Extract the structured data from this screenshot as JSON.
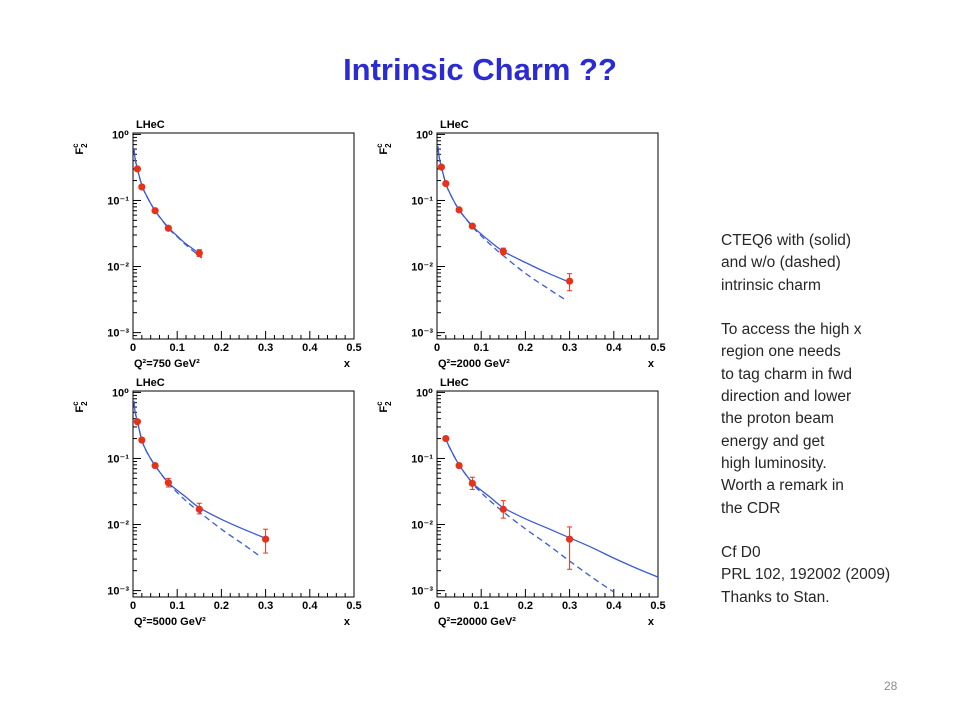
{
  "slide": {
    "title": "Intrinsic Charm ??",
    "page_number": "28",
    "notes": [
      {
        "lines": [
          "CTEQ6 with (solid)",
          "and w/o (dashed)",
          "intrinsic charm"
        ]
      },
      {
        "lines": [
          "To access the high x",
          "region one needs",
          "to tag charm in fwd",
          "direction and lower",
          "the proton beam",
          "energy and get",
          "high luminosity.",
          "Worth a remark in",
          "the CDR"
        ]
      },
      {
        "lines": [
          "Cf D0",
          "PRL 102, 192002 (2009)",
          "Thanks to Stan."
        ]
      }
    ],
    "colors": {
      "title": "#2b2bd4",
      "text": "#262626",
      "page_number": "#8c8c8c",
      "curve": "#3c5ad6",
      "data_points": "#e5321b",
      "frame": "#000000"
    }
  },
  "chart_data": [
    {
      "type": "scatter",
      "title": "LHeC",
      "annotation": "Q²=750 GeV²",
      "grid": false,
      "x_axis": {
        "label": "x",
        "scale": "linear",
        "range": [
          0,
          0.5
        ],
        "ticks": [
          0,
          0.1,
          0.2,
          0.3,
          0.4,
          0.5
        ],
        "tick_labels": [
          "0",
          "0.1",
          "0.2",
          "0.3",
          "0.4",
          "0.5"
        ]
      },
      "y_axis": {
        "label": {
          "base": "F",
          "sup": "c",
          "sub": "2"
        },
        "scale": "log",
        "range": [
          0.0008,
          1.05
        ],
        "ticks": [
          1,
          0.1,
          0.01,
          0.001
        ],
        "tick_labels": [
          "10⁰",
          "10⁻¹",
          "10⁻²",
          "10⁻³"
        ]
      },
      "series": [
        {
          "kind": "line",
          "style": "solid",
          "x": [
            0.002,
            0.005,
            0.01,
            0.02,
            0.03,
            0.05,
            0.08,
            0.1,
            0.12,
            0.15,
            0.156
          ],
          "y": [
            0.62,
            0.42,
            0.3,
            0.17,
            0.12,
            0.07,
            0.039,
            0.029,
            0.022,
            0.0158,
            0.0149
          ]
        },
        {
          "kind": "line",
          "style": "dashed",
          "x": [
            0.002,
            0.005,
            0.01,
            0.02,
            0.03,
            0.05,
            0.08,
            0.1,
            0.12,
            0.15,
            0.156
          ],
          "y": [
            0.62,
            0.42,
            0.3,
            0.17,
            0.12,
            0.07,
            0.038,
            0.0283,
            0.0212,
            0.0144,
            0.0135
          ]
        },
        {
          "kind": "points",
          "x": [
            0.01,
            0.02,
            0.05,
            0.08,
            0.15
          ],
          "y": [
            0.3,
            0.16,
            0.07,
            0.038,
            0.016
          ],
          "y_low": [
            0.285,
            0.152,
            0.066,
            0.035,
            0.0142
          ],
          "y_high": [
            0.315,
            0.168,
            0.074,
            0.041,
            0.018
          ]
        }
      ]
    },
    {
      "type": "scatter",
      "title": "LHeC",
      "annotation": "Q²=2000 GeV²",
      "grid": false,
      "x_axis": {
        "label": "x",
        "scale": "linear",
        "range": [
          0,
          0.5
        ],
        "ticks": [
          0,
          0.1,
          0.2,
          0.3,
          0.4,
          0.5
        ],
        "tick_labels": [
          "0",
          "0.1",
          "0.2",
          "0.3",
          "0.4",
          "0.5"
        ]
      },
      "y_axis": {
        "label": {
          "base": "F",
          "sup": "c",
          "sub": "2"
        },
        "scale": "log",
        "range": [
          0.0008,
          1.05
        ],
        "ticks": [
          1,
          0.1,
          0.01,
          0.001
        ],
        "tick_labels": [
          "10⁰",
          "10⁻¹",
          "10⁻²",
          "10⁻³"
        ]
      },
      "series": [
        {
          "kind": "line",
          "style": "solid",
          "x": [
            0.002,
            0.005,
            0.01,
            0.02,
            0.03,
            0.05,
            0.08,
            0.1,
            0.12,
            0.15,
            0.2,
            0.25,
            0.3
          ],
          "y": [
            0.66,
            0.45,
            0.32,
            0.18,
            0.125,
            0.072,
            0.041,
            0.031,
            0.024,
            0.017,
            0.0115,
            0.008,
            0.0058
          ]
        },
        {
          "kind": "line",
          "style": "dashed",
          "x": [
            0.002,
            0.005,
            0.01,
            0.02,
            0.03,
            0.05,
            0.08,
            0.1,
            0.12,
            0.15,
            0.2,
            0.25,
            0.295
          ],
          "y": [
            0.66,
            0.45,
            0.32,
            0.18,
            0.125,
            0.072,
            0.04,
            0.0292,
            0.0218,
            0.0146,
            0.0079,
            0.0047,
            0.003
          ]
        },
        {
          "kind": "points",
          "x": [
            0.01,
            0.02,
            0.05,
            0.08,
            0.15,
            0.3
          ],
          "y": [
            0.32,
            0.18,
            0.072,
            0.041,
            0.017,
            0.006
          ],
          "y_low": [
            0.305,
            0.171,
            0.068,
            0.038,
            0.0152,
            0.0043
          ],
          "y_high": [
            0.335,
            0.189,
            0.076,
            0.044,
            0.019,
            0.0078
          ]
        }
      ]
    },
    {
      "type": "scatter",
      "title": "LHeC",
      "annotation": "Q²=5000 GeV²",
      "grid": false,
      "x_axis": {
        "label": "x",
        "scale": "linear",
        "range": [
          0,
          0.5
        ],
        "ticks": [
          0,
          0.1,
          0.2,
          0.3,
          0.4,
          0.5
        ],
        "tick_labels": [
          "0",
          "0.1",
          "0.2",
          "0.3",
          "0.4",
          "0.5"
        ]
      },
      "y_axis": {
        "label": {
          "base": "F",
          "sup": "c",
          "sub": "2"
        },
        "scale": "log",
        "range": [
          0.0008,
          1.05
        ],
        "ticks": [
          1,
          0.1,
          0.01,
          0.001
        ],
        "tick_labels": [
          "10⁰",
          "10⁻¹",
          "10⁻²",
          "10⁻³"
        ]
      },
      "series": [
        {
          "kind": "line",
          "style": "solid",
          "x": [
            0.002,
            0.005,
            0.01,
            0.02,
            0.03,
            0.05,
            0.08,
            0.1,
            0.12,
            0.15,
            0.2,
            0.25,
            0.3
          ],
          "y": [
            0.74,
            0.5,
            0.36,
            0.19,
            0.13,
            0.078,
            0.043,
            0.033,
            0.026,
            0.018,
            0.012,
            0.0085,
            0.0062
          ]
        },
        {
          "kind": "line",
          "style": "dashed",
          "x": [
            0.002,
            0.005,
            0.01,
            0.02,
            0.03,
            0.05,
            0.08,
            0.1,
            0.12,
            0.15,
            0.2,
            0.25,
            0.29
          ],
          "y": [
            0.74,
            0.5,
            0.36,
            0.19,
            0.13,
            0.078,
            0.042,
            0.0305,
            0.0228,
            0.0155,
            0.0085,
            0.005,
            0.0032
          ]
        },
        {
          "kind": "points",
          "x": [
            0.01,
            0.02,
            0.05,
            0.08,
            0.15,
            0.3
          ],
          "y": [
            0.36,
            0.19,
            0.078,
            0.043,
            0.017,
            0.006
          ],
          "y_low": [
            0.342,
            0.18,
            0.073,
            0.037,
            0.0145,
            0.0037
          ],
          "y_high": [
            0.378,
            0.2,
            0.083,
            0.05,
            0.021,
            0.0085
          ]
        }
      ]
    },
    {
      "type": "scatter",
      "title": "LHeC",
      "annotation": "Q²=20000 GeV²",
      "grid": false,
      "x_axis": {
        "label": "x",
        "scale": "linear",
        "range": [
          0,
          0.5
        ],
        "ticks": [
          0,
          0.1,
          0.2,
          0.3,
          0.4,
          0.5
        ],
        "tick_labels": [
          "0",
          "0.1",
          "0.2",
          "0.3",
          "0.4",
          "0.5"
        ]
      },
      "y_axis": {
        "label": {
          "base": "F",
          "sup": "c",
          "sub": "2"
        },
        "scale": "log",
        "range": [
          0.0008,
          1.05
        ],
        "ticks": [
          1,
          0.1,
          0.01,
          0.001
        ],
        "tick_labels": [
          "10⁰",
          "10⁻¹",
          "10⁻²",
          "10⁻³"
        ]
      },
      "series": [
        {
          "kind": "line",
          "style": "solid",
          "x": [
            0.015,
            0.02,
            0.03,
            0.05,
            0.08,
            0.1,
            0.12,
            0.15,
            0.2,
            0.25,
            0.3,
            0.35,
            0.4,
            0.45,
            0.5
          ],
          "y": [
            0.22,
            0.195,
            0.14,
            0.08,
            0.043,
            0.033,
            0.026,
            0.018,
            0.0122,
            0.0088,
            0.0063,
            0.0045,
            0.0031,
            0.0022,
            0.0016
          ]
        },
        {
          "kind": "line",
          "style": "dashed",
          "x": [
            0.015,
            0.02,
            0.03,
            0.05,
            0.08,
            0.1,
            0.12,
            0.15,
            0.2,
            0.25,
            0.3,
            0.35,
            0.4
          ],
          "y": [
            0.22,
            0.195,
            0.14,
            0.08,
            0.042,
            0.0305,
            0.0228,
            0.0155,
            0.0086,
            0.005,
            0.0028,
            0.0016,
            0.00095
          ]
        },
        {
          "kind": "points",
          "x": [
            0.02,
            0.05,
            0.08,
            0.15,
            0.3
          ],
          "y": [
            0.2,
            0.078,
            0.042,
            0.017,
            0.006
          ],
          "y_low": [
            0.19,
            0.072,
            0.034,
            0.0125,
            0.0021
          ],
          "y_high": [
            0.21,
            0.084,
            0.052,
            0.023,
            0.0092
          ]
        }
      ]
    }
  ]
}
